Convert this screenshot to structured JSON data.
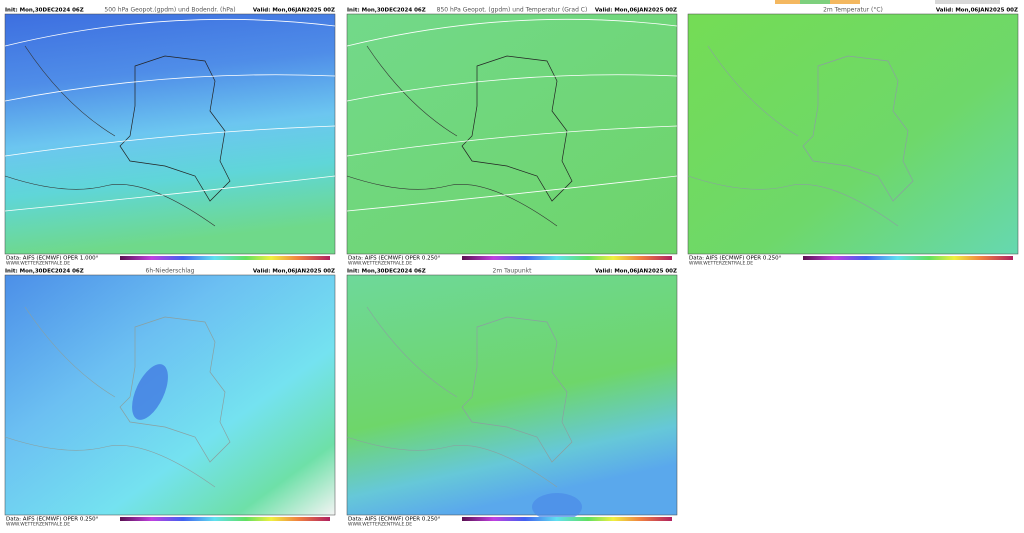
{
  "panels": [
    {
      "init": "Init: Mon,30DEC2024 06Z",
      "title": "500 hPa Geopot.(gpdm) und Bodendr. (hPa)",
      "valid": "Valid: Mon,06JAN2025 00Z",
      "data": "Data: AIFS (ECMWF) OPER 1.000°",
      "site": "WWW.WETTERZENTRALE.DE"
    },
    {
      "init": "Init: Mon,30DEC2024 06Z",
      "title": "850 hPa Geopot. (gpdm) und Temperatur (Grad C)",
      "valid": "Valid: Mon,06JAN2025 00Z",
      "data": "Data: AIFS (ECMWF) OPER 0.250°",
      "site": "WWW.WETTERZENTRALE.DE"
    },
    {
      "title": "2m Temperatur (°C)",
      "valid": "Valid: Mon,06JAN2025 00Z",
      "data": "Data: AIFS (ECMWF) OPER 0.250°",
      "site": "WWW.WETTERZENTRALE.DE"
    },
    {
      "init": "Init: Mon,30DEC2024 06Z",
      "title": "6h-Niederschlag",
      "valid": "Valid: Mon,06JAN2025 00Z",
      "data": "Data: AIFS (ECMWF) OPER 0.250°",
      "site": "WWW.WETTERZENTRALE.DE"
    },
    {
      "init": "Init: Mon,30DEC2024 06Z",
      "title": "2m Taupunkt",
      "valid": "Valid: Mon,06JAN2025 00Z",
      "data": "Data: AIFS (ECMWF) OPER 0.250°",
      "site": "WWW.WETTERZENTRALE.DE"
    }
  ]
}
